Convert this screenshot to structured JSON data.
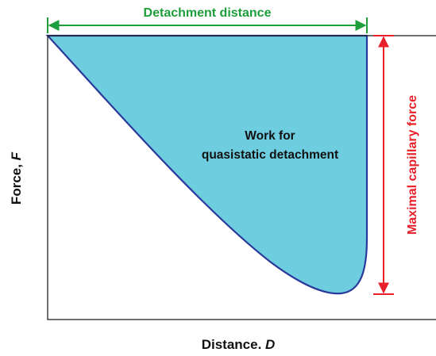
{
  "top_label": "Detachment distance",
  "area_label": {
    "line1": "Work for",
    "line2": "quasistatic detachment"
  },
  "side_label": "Maximal capillary force",
  "y_axis": {
    "text": "Force, ",
    "symbol": "F"
  },
  "x_axis": {
    "text": "Distance. ",
    "symbol": "D"
  }
}
